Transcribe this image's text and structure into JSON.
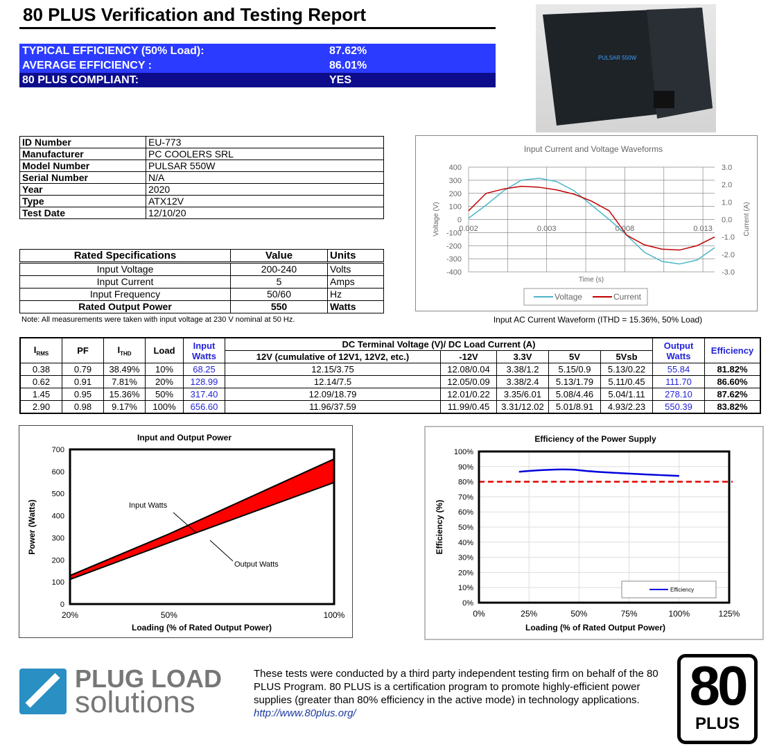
{
  "title": "80 PLUS Verification and Testing Report",
  "summary": [
    {
      "label": "TYPICAL EFFICIENCY (50% Load):",
      "value": "87.62%"
    },
    {
      "label": "AVERAGE EFFICIENCY :",
      "value": "86.01%"
    },
    {
      "label": "80 PLUS COMPLIANT:",
      "value": "YES"
    }
  ],
  "colors": {
    "summary_bg": "#2b3bff",
    "summary_dark": "#0d0d8c",
    "blue_text": "#2323d9",
    "fill_red": "#ff0000",
    "voltage": "#4bb6c8",
    "current": "#c00000",
    "efficiency": "#0000dd"
  },
  "photo": {
    "icon": "psu-product-photo",
    "text": "PULSAR 550W"
  },
  "info": [
    [
      "ID Number",
      "EU-773"
    ],
    [
      "Manufacturer",
      "PC COOLERS SRL"
    ],
    [
      "Model Number",
      "PULSAR 550W"
    ],
    [
      "Serial Number",
      "N/A"
    ],
    [
      "Year",
      "2020"
    ],
    [
      "Type",
      "ATX12V"
    ],
    [
      "Test Date",
      "12/10/20"
    ]
  ],
  "spec": {
    "headers": [
      "Rated Specifications",
      "Value",
      "Units"
    ],
    "rows": [
      [
        "Input Voltage",
        "200-240",
        "Volts"
      ],
      [
        "Input Current",
        "5",
        "Amps"
      ],
      [
        "Input Frequency",
        "50/60",
        "Hz"
      ],
      [
        "Rated Output Power",
        "550",
        "Watts"
      ]
    ]
  },
  "note": "Note: All measurements were taken with input voltage at 230 V nominal at 50 Hz.",
  "waveform_caption": "Input AC Current Waveform (ITHD = 15.36%, 50% Load)",
  "table": {
    "h": {
      "irms": "I",
      "irms_sub": "RMS",
      "pf": "PF",
      "ithd": "I",
      "ithd_sub": "THD",
      "load": "Load",
      "input": "Input Watts",
      "dc": "DC Terminal Voltage (V)/ DC Load Current (A)",
      "c12": "12V (cumulative of 12V1, 12V2, etc.)",
      "m12": "-12V",
      "v33": "3.3V",
      "v5": "5V",
      "v5sb": "5Vsb",
      "output": "Output Watts",
      "eff": "Efficiency"
    },
    "rows": [
      [
        "0.38",
        "0.79",
        "38.49%",
        "10%",
        "68.25",
        "12.15/3.75",
        "12.08/0.04",
        "3.38/1.2",
        "5.15/0.9",
        "5.13/0.22",
        "55.84",
        "81.82%"
      ],
      [
        "0.62",
        "0.91",
        "7.81%",
        "20%",
        "128.99",
        "12.14/7.5",
        "12.05/0.09",
        "3.38/2.4",
        "5.13/1.79",
        "5.11/0.45",
        "111.70",
        "86.60%"
      ],
      [
        "1.45",
        "0.95",
        "15.36%",
        "50%",
        "317.40",
        "12.09/18.79",
        "12.01/0.22",
        "3.35/6.01",
        "5.08/4.46",
        "5.04/1.11",
        "278.10",
        "87.62%"
      ],
      [
        "2.90",
        "0.98",
        "9.17%",
        "100%",
        "656.60",
        "11.96/37.59",
        "11.99/0.45",
        "3.31/12.02",
        "5.01/8.91",
        "4.93/2.23",
        "550.39",
        "83.82%"
      ]
    ]
  },
  "chart_data": [
    {
      "type": "line",
      "title": "Input Current and Voltage Waveforms",
      "xlabel": "Time (s)",
      "ylabel": "Voltage (V)",
      "y2label": "Current (A)",
      "x_tick_labels": [
        "0.002",
        "0.003",
        "0.008",
        "0.013"
      ],
      "ylim": [
        -400,
        400
      ],
      "y2lim": [
        -3,
        3
      ],
      "yticks": [
        "400",
        "300",
        "200",
        "100",
        "0",
        "-100",
        "-200",
        "-300",
        "-400"
      ],
      "y2ticks": [
        "3.0",
        "2.0",
        "1.0",
        "0.0",
        "-1.0",
        "-2.0",
        "-3.0"
      ],
      "grid": true,
      "legend": "bottom",
      "series": [
        {
          "name": "Voltage",
          "values": [
            10,
            110,
            220,
            300,
            315,
            290,
            220,
            110,
            0,
            -120,
            -250,
            -320,
            -340,
            -310,
            -215
          ]
        },
        {
          "name": "Current",
          "values": [
            0.5,
            1.5,
            1.75,
            1.9,
            1.85,
            1.7,
            1.45,
            1.05,
            0.5,
            -0.9,
            -1.45,
            -1.7,
            -1.75,
            -1.5,
            -1.0
          ]
        }
      ]
    },
    {
      "type": "area",
      "title": "Input and Output Power",
      "xlabel": "Loading (% of Rated Output Power)",
      "ylabel": "Power (Watts)",
      "categories": [
        "20%",
        "50%",
        "100%"
      ],
      "ylim": [
        0,
        700
      ],
      "yticks": [
        0,
        100,
        200,
        300,
        400,
        500,
        600,
        700
      ],
      "series": [
        {
          "name": "Input Watts",
          "values": [
            128.99,
            317.4,
            656.6
          ]
        },
        {
          "name": "Output Watts",
          "values": [
            111.7,
            278.1,
            550.39
          ]
        }
      ]
    },
    {
      "type": "line",
      "title": "Efficiency of the Power Supply",
      "xlabel": "Loading (% of Rated Output Power)",
      "ylabel": "Efficiency (%)",
      "xlim": [
        0,
        125
      ],
      "xticks": [
        "0%",
        "25%",
        "50%",
        "75%",
        "100%",
        "125%"
      ],
      "ylim": [
        0,
        100
      ],
      "yticks": [
        "0%",
        "10%",
        "20%",
        "30%",
        "40%",
        "50%",
        "60%",
        "70%",
        "80%",
        "90%",
        "100%"
      ],
      "grid": true,
      "legend": "bottom-right",
      "threshold": 80,
      "series": [
        {
          "name": "Efficiency",
          "x": [
            20,
            50,
            100
          ],
          "values": [
            86.6,
            87.62,
            83.82
          ]
        }
      ]
    }
  ],
  "footer": {
    "logo_line1": "PLUG LOAD",
    "logo_line2": "solutions",
    "text": "These tests were conducted by a third party independent testing firm on behalf of the 80 PLUS Program. 80 PLUS is a certification program to promote highly-efficient power supplies (greater than 80% efficiency in the active mode) in technology applications.",
    "link": "http://www.80plus.org/",
    "badge_num": "80",
    "badge_text": "PLUS"
  }
}
